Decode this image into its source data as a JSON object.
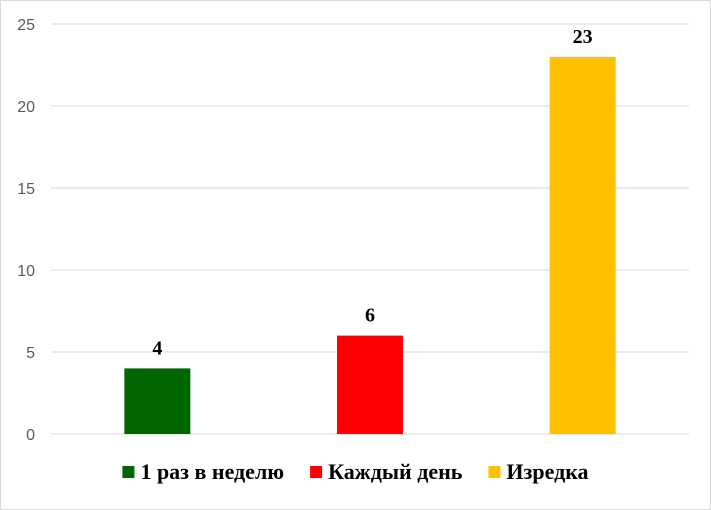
{
  "chart_data": {
    "type": "bar",
    "title": "",
    "xlabel": "",
    "ylabel": "",
    "categories": [
      "1 раз в неделю",
      "Каждый день",
      "Изредка"
    ],
    "values": [
      4,
      6,
      23
    ],
    "colors": [
      "#006600",
      "#ff0000",
      "#ffc000"
    ],
    "ylim": [
      0,
      25
    ],
    "yticks": [
      0,
      5,
      10,
      15,
      20,
      25
    ],
    "grid": true,
    "legend": "bottom",
    "data_labels": true
  }
}
